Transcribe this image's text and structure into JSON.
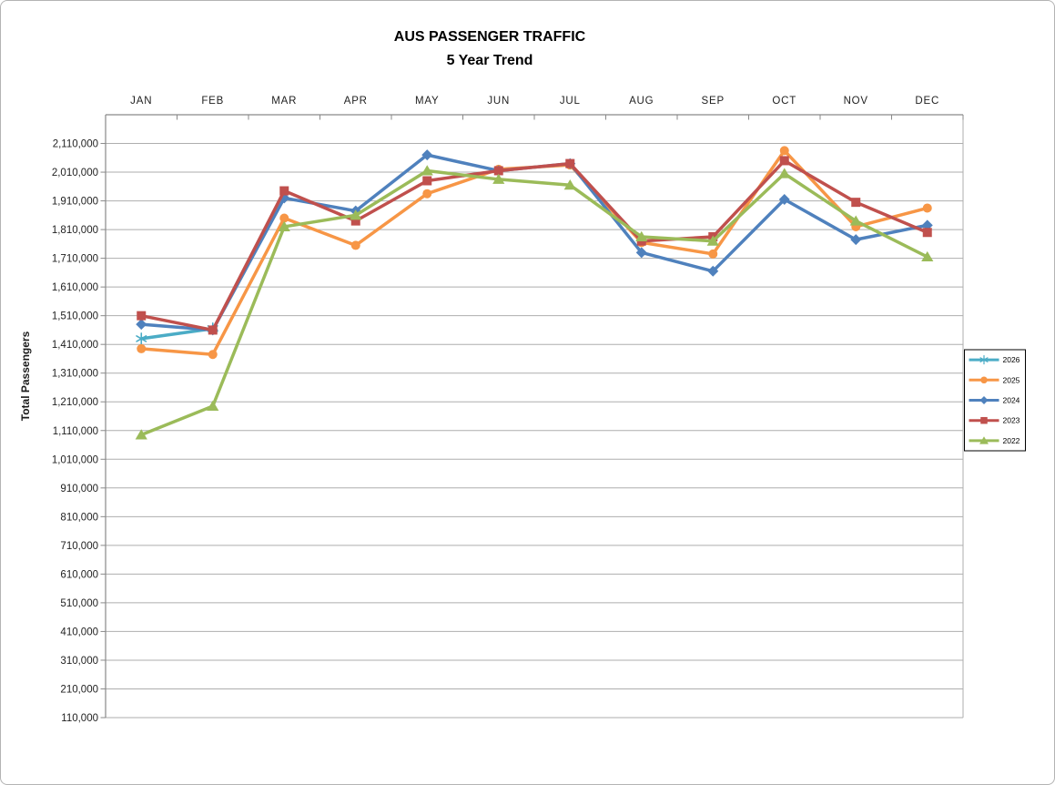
{
  "chart_data": {
    "type": "line",
    "title": "AUS PASSENGER TRAFFIC",
    "subtitle": "5 Year Trend",
    "ylabel": "Total Passengers",
    "xlabel": "",
    "categories": [
      "JAN",
      "FEB",
      "MAR",
      "APR",
      "MAY",
      "JUN",
      "JUL",
      "AUG",
      "SEP",
      "OCT",
      "NOV",
      "DEC"
    ],
    "ylim": [
      110000,
      2210000
    ],
    "ytick_min": 110000,
    "ytick_max": 2110000,
    "ytick_interval": 100000,
    "grid": true,
    "legend_position": "right",
    "gridline_color": "#aeaeae",
    "axis_color": "#898989",
    "series": [
      {
        "name": "2026",
        "color": "#4BACC6",
        "marker": "asterisk",
        "values": [
          1430000,
          1465000,
          null,
          null,
          null,
          null,
          null,
          null,
          null,
          null,
          null,
          null
        ]
      },
      {
        "name": "2025",
        "color": "#F79646",
        "marker": "circle",
        "values": [
          1395000,
          1375000,
          1850000,
          1755000,
          1935000,
          2020000,
          2035000,
          1765000,
          1725000,
          2085000,
          1820000,
          1885000
        ]
      },
      {
        "name": "2024",
        "color": "#4F81BD",
        "marker": "diamond",
        "values": [
          1480000,
          1460000,
          1920000,
          1875000,
          2070000,
          2015000,
          2040000,
          1730000,
          1665000,
          1915000,
          1775000,
          1825000
        ]
      },
      {
        "name": "2023",
        "color": "#C0504D",
        "marker": "square",
        "values": [
          1510000,
          1460000,
          1945000,
          1840000,
          1980000,
          2015000,
          2040000,
          1770000,
          1785000,
          2050000,
          1905000,
          1800000
        ]
      },
      {
        "name": "2022",
        "color": "#9BBB59",
        "marker": "triangle",
        "values": [
          1095000,
          1195000,
          1820000,
          1860000,
          2015000,
          1985000,
          1965000,
          1785000,
          1770000,
          2005000,
          1840000,
          1715000
        ]
      }
    ]
  }
}
